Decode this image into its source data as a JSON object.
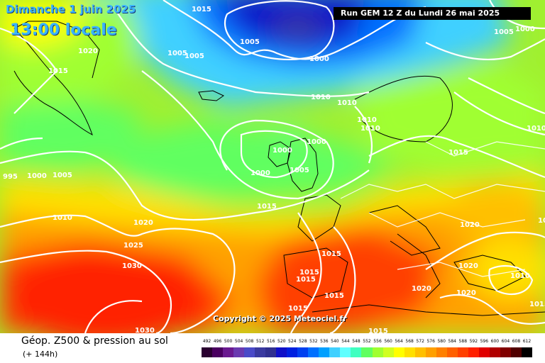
{
  "header": {
    "date": "Dimanche 1 juin 2025",
    "time": "13:00 locale",
    "run": "Run GEM 12 Z du Lundi 26 mai 2025"
  },
  "copyright": "Copyright © 2025 Meteociel.fr",
  "footer": {
    "title": "Géop. Z500 & pression au sol",
    "lead": "(+ 144h)"
  },
  "legend": {
    "labels": [
      "492",
      "496",
      "500",
      "504",
      "508",
      "512",
      "516",
      "520",
      "524",
      "528",
      "532",
      "536",
      "540",
      "544",
      "548",
      "552",
      "556",
      "560",
      "564",
      "568",
      "572",
      "576",
      "580",
      "584",
      "588",
      "592",
      "596",
      "600",
      "604",
      "608",
      "612"
    ],
    "colors": [
      "#2a0030",
      "#4a0060",
      "#6a1a90",
      "#6a3ab0",
      "#4a4ac8",
      "#3a3aa0",
      "#303090",
      "#1010c8",
      "#0020e0",
      "#0040f0",
      "#0070ff",
      "#00a0ff",
      "#40d0ff",
      "#60ffff",
      "#40ffc0",
      "#60ff60",
      "#a0ff30",
      "#d0ff20",
      "#ffff00",
      "#ffe000",
      "#ffc000",
      "#ffa000",
      "#ff8000",
      "#ff6000",
      "#ff4000",
      "#ff2000",
      "#e00000",
      "#b00000",
      "#800000",
      "#500000",
      "#000000"
    ]
  },
  "isobars": [
    {
      "text": "1015"
    },
    {
      "text": "1020"
    },
    {
      "text": "1015"
    },
    {
      "text": "1005"
    },
    {
      "text": "1005"
    },
    {
      "text": "1005"
    },
    {
      "text": "1000"
    },
    {
      "text": "1005"
    },
    {
      "text": "1000"
    },
    {
      "text": "1010"
    },
    {
      "text": "1010"
    },
    {
      "text": "1010"
    },
    {
      "text": "1010"
    },
    {
      "text": "1000"
    },
    {
      "text": "1000"
    },
    {
      "text": "1005"
    },
    {
      "text": "1000"
    },
    {
      "text": "1015"
    },
    {
      "text": "1015"
    },
    {
      "text": "1010"
    },
    {
      "text": "995"
    },
    {
      "text": "1000"
    },
    {
      "text": "1005"
    },
    {
      "text": "1010"
    },
    {
      "text": "1020"
    },
    {
      "text": "1025"
    },
    {
      "text": "1030"
    },
    {
      "text": "1030"
    },
    {
      "text": "1015"
    },
    {
      "text": "1015"
    },
    {
      "text": "1015"
    },
    {
      "text": "1015"
    },
    {
      "text": "1015"
    },
    {
      "text": "1015"
    },
    {
      "text": "1020"
    },
    {
      "text": "1020"
    },
    {
      "text": "1020"
    },
    {
      "text": "1010"
    },
    {
      "text": "1020"
    },
    {
      "text": "1015"
    },
    {
      "text": "1010"
    }
  ]
}
